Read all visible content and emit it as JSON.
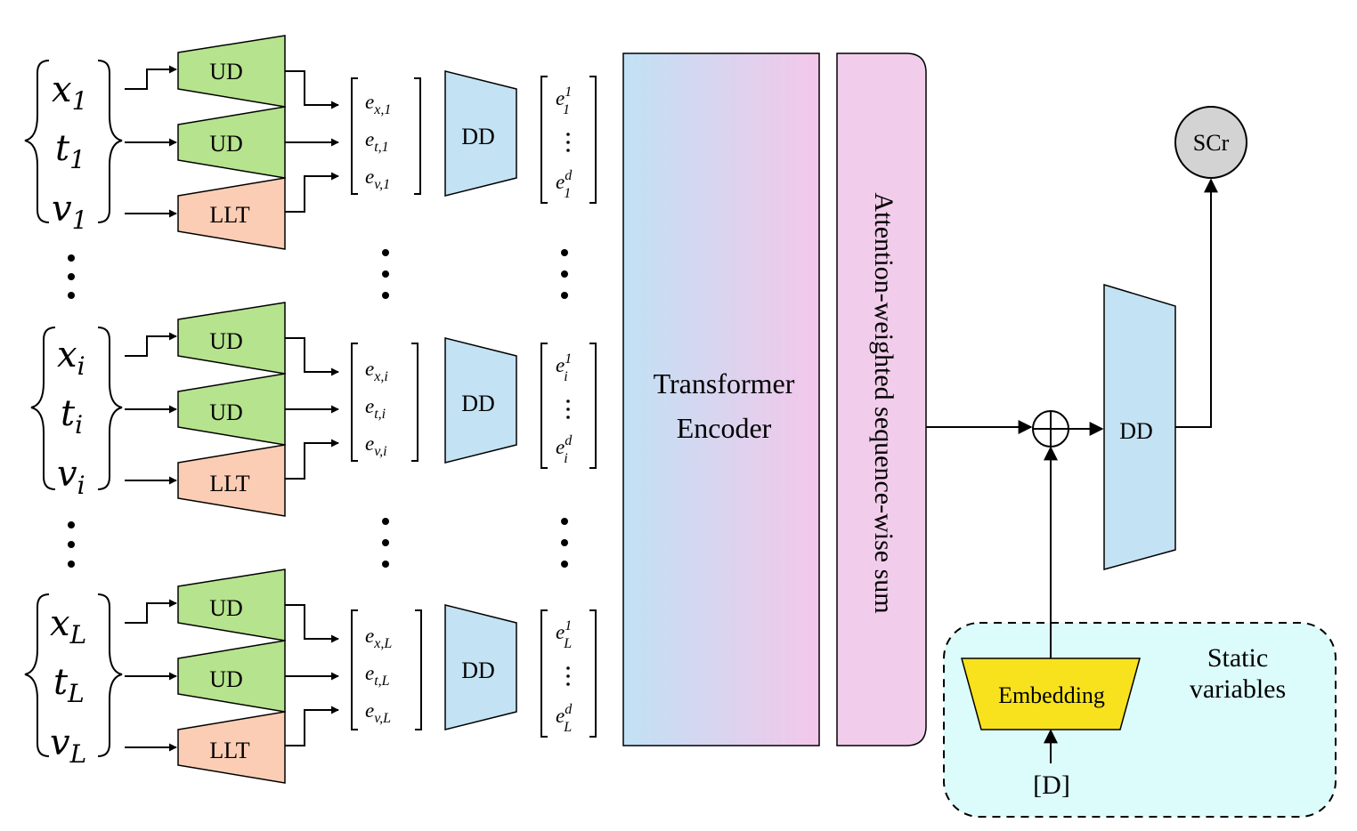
{
  "groups": [
    {
      "vars": [
        {
          "base": "x",
          "sub": "1"
        },
        {
          "base": "t",
          "sub": "1"
        },
        {
          "base": "v",
          "sub": "1"
        }
      ],
      "enc": [
        "UD",
        "UD",
        "LLT"
      ],
      "emb": [
        {
          "base": "e",
          "sub": "x,1"
        },
        {
          "base": "e",
          "sub": "t,1"
        },
        {
          "base": "e",
          "sub": "v,1"
        }
      ],
      "dd": "DD",
      "out": {
        "base": "e",
        "top_sup": "1",
        "bot_sup": "d",
        "sub": "1"
      }
    },
    {
      "vars": [
        {
          "base": "x",
          "sub": "i"
        },
        {
          "base": "t",
          "sub": "i"
        },
        {
          "base": "v",
          "sub": "i"
        }
      ],
      "enc": [
        "UD",
        "UD",
        "LLT"
      ],
      "emb": [
        {
          "base": "e",
          "sub": "x,i"
        },
        {
          "base": "e",
          "sub": "t,i"
        },
        {
          "base": "e",
          "sub": "v,i"
        }
      ],
      "dd": "DD",
      "out": {
        "base": "e",
        "top_sup": "1",
        "bot_sup": "d",
        "sub": "i"
      }
    },
    {
      "vars": [
        {
          "base": "x",
          "sub": "L"
        },
        {
          "base": "t",
          "sub": "L"
        },
        {
          "base": "v",
          "sub": "L"
        }
      ],
      "enc": [
        "UD",
        "UD",
        "LLT"
      ],
      "emb": [
        {
          "base": "e",
          "sub": "x,L"
        },
        {
          "base": "e",
          "sub": "t,L"
        },
        {
          "base": "e",
          "sub": "v,L"
        }
      ],
      "dd": "DD",
      "out": {
        "base": "e",
        "top_sup": "1",
        "bot_sup": "d",
        "sub": "L"
      }
    }
  ],
  "transformer": {
    "line1": "Transformer",
    "line2": "Encoder"
  },
  "attention": "Attention-weighted sequence-wise sum",
  "final_dd": "DD",
  "output": "SCr",
  "static": {
    "embedding": "Embedding",
    "input": "[D]",
    "label_line1": "Static",
    "label_line2": "variables"
  },
  "colors": {
    "ud_green": "#b6e38d",
    "llt_peach": "#fbcdb4",
    "dd_blue": "#c3e2f3",
    "transformer_top": "#c1e1f4",
    "transformer_bottom": "#f3c7ea",
    "attention_pink": "#f1cdeb",
    "embedding_yellow": "#f7e21d",
    "static_bg": "#dcfbfb",
    "scr_gray": "#d3d3d3"
  }
}
